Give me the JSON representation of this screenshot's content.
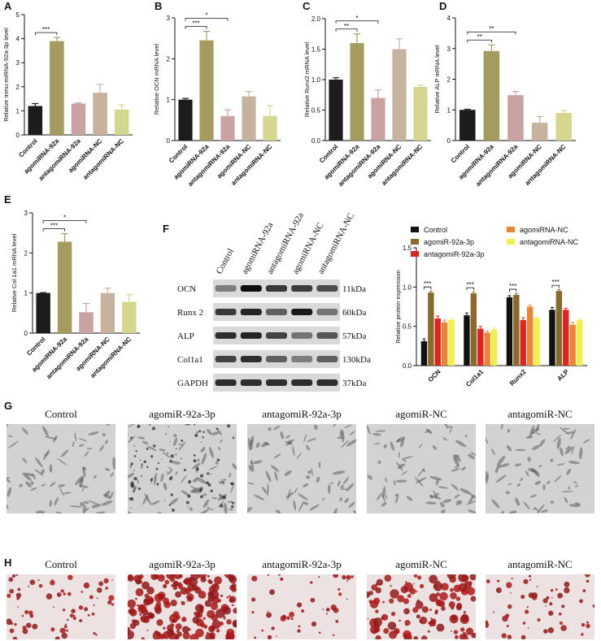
{
  "chart_data": [
    {
      "type": "bar",
      "label": "A",
      "y_label": "Relative mmu-miRNA-92a-3p level",
      "categories": [
        "Control",
        "agomiRNA-92a",
        "antagomiRNA-92a",
        "agomiRNA-NC",
        "antagomiRNA-NC"
      ],
      "values": [
        1.2,
        3.9,
        1.3,
        1.75,
        1.05
      ],
      "errors": [
        0.1,
        0.15,
        0.03,
        0.35,
        0.2
      ],
      "colors": [
        "#1c1c1c",
        "#a39c5e",
        "#c9a2a2",
        "#c7b39d",
        "#d5d78e"
      ],
      "ylim": [
        0,
        5
      ],
      "yticks": [
        0,
        1,
        2,
        3,
        4,
        5
      ],
      "annotations": [
        {
          "text": "***",
          "between": [
            "Control",
            "agomiRNA-92a"
          ]
        }
      ]
    },
    {
      "type": "bar",
      "label": "B",
      "y_label": "Relative OCN mRNA level",
      "categories": [
        "Control",
        "agomiRNA-92a",
        "antagomiRNA-92a",
        "agomiRNA-NC",
        "antagomiRNA-NC"
      ],
      "values": [
        1.0,
        2.45,
        0.6,
        1.08,
        0.6
      ],
      "errors": [
        0.03,
        0.22,
        0.15,
        0.12,
        0.25
      ],
      "colors": [
        "#1c1c1c",
        "#a39c5e",
        "#c9a2a2",
        "#c7b39d",
        "#d5d78e"
      ],
      "ylim": [
        0,
        3
      ],
      "yticks": [
        0,
        1,
        2,
        3
      ],
      "annotations": [
        {
          "text": "***",
          "between": [
            "Control",
            "agomiRNA-92a"
          ]
        },
        {
          "text": "*",
          "between": [
            "Control",
            "antagomiRNA-92a"
          ]
        }
      ]
    },
    {
      "type": "bar",
      "label": "C",
      "y_label": "Relative Runx2 mRNA level",
      "categories": [
        "Control",
        "agomiRNA-92a",
        "antagomiRNA-92a",
        "agomiRNA-NC",
        "antagomiRNA-NC"
      ],
      "values": [
        1.0,
        1.6,
        0.7,
        1.5,
        0.88
      ],
      "errors": [
        0.03,
        0.15,
        0.13,
        0.17,
        0.03
      ],
      "colors": [
        "#1c1c1c",
        "#a39c5e",
        "#c9a2a2",
        "#c7b39d",
        "#d5d78e"
      ],
      "ylim": [
        0,
        2
      ],
      "yticks": [
        {
          "value": 0,
          "label": "0.0"
        },
        0.5,
        {
          "value": 1,
          "label": "1.0"
        },
        1.5,
        {
          "value": 2,
          "label": "2.0"
        }
      ],
      "annotations": [
        {
          "text": "**",
          "between": [
            "Control",
            "agomiRNA-92a"
          ]
        },
        {
          "text": "*",
          "between": [
            "Control",
            "antagomiRNA-92a"
          ]
        }
      ]
    },
    {
      "type": "bar",
      "label": "D",
      "y_label": "Relative ALP mRNA level",
      "categories": [
        "Control",
        "agomiRNA-92a",
        "antagomiRNA-92a",
        "agomiRNA-NC",
        "antagomiRNA-NC"
      ],
      "values": [
        1.0,
        2.92,
        1.48,
        0.58,
        0.9
      ],
      "errors": [
        0.02,
        0.2,
        0.12,
        0.2,
        0.08
      ],
      "colors": [
        "#1c1c1c",
        "#a39c5e",
        "#c9a2a2",
        "#c7b39d",
        "#d5d78e"
      ],
      "ylim": [
        0,
        4
      ],
      "yticks": [
        0,
        1,
        2,
        3,
        4
      ],
      "annotations": [
        {
          "text": "**",
          "between": [
            "Control",
            "agomiRNA-92a"
          ]
        },
        {
          "text": "**",
          "between": [
            "Control",
            "antagomiRNA-92a"
          ]
        }
      ]
    },
    {
      "type": "bar",
      "label": "E",
      "y_label": "Relative Col 1a1 mRNA level",
      "categories": [
        "Control",
        "agomiRNA-92a",
        "antagomiRNA-92a",
        "agomiRNA-NC",
        "antagomiRNA-NC"
      ],
      "values": [
        1.0,
        2.28,
        0.52,
        1.0,
        0.78
      ],
      "errors": [
        0.01,
        0.2,
        0.22,
        0.12,
        0.18
      ],
      "colors": [
        "#1c1c1c",
        "#a39c5e",
        "#c9a2a2",
        "#c7b39d",
        "#d5d78e"
      ],
      "ylim": [
        0,
        3
      ],
      "yticks": [
        0,
        1,
        2,
        3
      ],
      "annotations": [
        {
          "text": "***",
          "between": [
            "Control",
            "agomiRNA-92a"
          ]
        },
        {
          "text": "*",
          "between": [
            "Control",
            "antagomiRNA-92a"
          ]
        }
      ]
    },
    {
      "type": "grouped_bar",
      "y_label": "Relative protein expression",
      "categories": [
        "OCN",
        "Col1a1",
        "Runx2",
        "ALP"
      ],
      "series": [
        {
          "name": "Control",
          "color": "#111111",
          "values": [
            0.31,
            0.64,
            0.87,
            0.71
          ],
          "errors": [
            0.03,
            0.03,
            0.02,
            0.03
          ]
        },
        {
          "name": "agomiR-92a-3p",
          "color": "#8a6a2c",
          "values": [
            0.93,
            0.92,
            0.9,
            0.95
          ],
          "errors": [
            0.02,
            0.02,
            0.02,
            0.02
          ]
        },
        {
          "name": "antagomiR-92a-3p",
          "color": "#e02424",
          "values": [
            0.6,
            0.47,
            0.58,
            0.71
          ],
          "errors": [
            0.03,
            0.03,
            0.03,
            0.02
          ]
        },
        {
          "name": "agomiRNA-NC",
          "color": "#ec8434",
          "values": [
            0.55,
            0.42,
            0.75,
            0.52
          ],
          "errors": [
            0.03,
            0.02,
            0.02,
            0.03
          ]
        },
        {
          "name": "antagomiRNA-NC",
          "color": "#f4ee48",
          "values": [
            0.58,
            0.46,
            0.6,
            0.58
          ],
          "errors": [
            0.02,
            0.02,
            0.02,
            0.02
          ]
        }
      ],
      "ylim": [
        0,
        1.5
      ],
      "yticks": [
        {
          "value": 0,
          "label": "0.0"
        },
        0.5,
        {
          "value": 1,
          "label": "1.0"
        },
        1.5
      ],
      "annotations": [
        {
          "text": "***",
          "category": "OCN",
          "between": [
            "Control",
            "agomiR-92a-3p"
          ]
        },
        {
          "text": "***",
          "category": "Col1a1",
          "between": [
            "Control",
            "agomiR-92a-3p"
          ]
        },
        {
          "text": "***",
          "category": "Runx2",
          "between": [
            "Control",
            "agomiR-92a-3p"
          ]
        },
        {
          "text": "***",
          "category": "ALP",
          "between": [
            "Control",
            "agomiR-92a-3p"
          ]
        }
      ]
    }
  ],
  "blot": {
    "label": "F",
    "lanes": [
      "Control",
      "agomiRNA-92a",
      "antagomiRNA-92a",
      "agomiRNA-NC",
      "antagomiRNA-NC"
    ],
    "proteins": [
      {
        "name": "OCN",
        "size": "11kDa"
      },
      {
        "name": "Runx 2",
        "size": "60kDa"
      },
      {
        "name": "ALP",
        "size": "57kDa"
      },
      {
        "name": "Col1a1",
        "size": "130kDa"
      },
      {
        "name": "GAPDH",
        "size": "37kDa"
      }
    ]
  },
  "cell_images": {
    "label": "G",
    "captions": [
      "Control",
      "agomiR-92a-3p",
      "antagomiR-92a-3p",
      "agomiR-NC",
      "antagomiR-NC"
    ]
  },
  "staining_images": {
    "label": "H",
    "captions": [
      "Control",
      "agomiR-92a-3p",
      "antagomiR-92a-3p",
      "agomiR-NC",
      "antagomiR-NC"
    ]
  }
}
